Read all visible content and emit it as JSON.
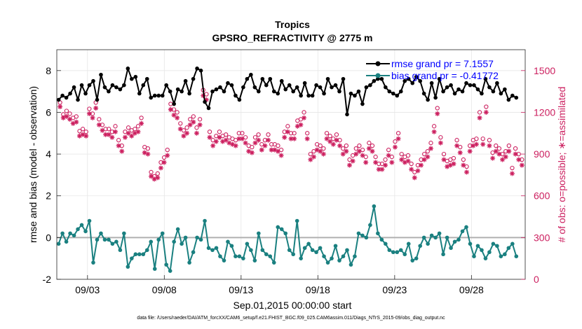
{
  "chart_data": {
    "type": "line",
    "title": "Tropics",
    "subtitle": "GPSRO_REFRACTIVITY @ 2775 m",
    "xlabel": "Sep.01,2015 00:00:00 start",
    "ylabel_left": "rmse and bias (model - observation)",
    "ylabel_right": "# of obs: o=possible; ∗=assimilated",
    "xlim": [
      1,
      31.5
    ],
    "ylim_left": [
      -2,
      9
    ],
    "ylim_right": [
      0,
      1650
    ],
    "xticks": [
      3,
      8,
      13,
      18,
      23,
      28
    ],
    "xtick_labels": [
      "09/03",
      "09/08",
      "09/13",
      "09/18",
      "09/23",
      "09/28"
    ],
    "yticks_left": [
      -2,
      0,
      2,
      4,
      6,
      8
    ],
    "yticks_right": [
      0,
      300,
      600,
      900,
      1200,
      1500
    ],
    "legend": [
      "rmse grand pr = 7.1557",
      "bias grand pr = -0.41772"
    ],
    "legend_position": "top-right",
    "colors": {
      "rmse": "#000000",
      "bias": "#1a8080",
      "obs": "#cc1f5f",
      "zero_line": "#b0b0b0",
      "legend_text": "#0000ff"
    },
    "series": [
      {
        "name": "rmse",
        "axis": "left",
        "values": [
          6.6,
          6.8,
          6.7,
          6.9,
          7.2,
          6.6,
          7.3,
          6.9,
          7.3,
          7.5,
          6.6,
          7.8,
          7.2,
          7.0,
          7.3,
          7.2,
          7.1,
          7.3,
          8.1,
          7.6,
          7.7,
          6.9,
          7.3,
          7.6,
          6.7,
          6.8,
          6.8,
          6.8,
          7.3,
          7.0,
          6.4,
          7.1,
          7.0,
          7.5,
          6.9,
          7.6,
          8.1,
          8.0,
          6.5,
          6.2,
          7.0,
          7.1,
          7.2,
          7.0,
          7.4,
          7.3,
          6.8,
          6.6,
          7.2,
          7.6,
          7.8,
          7.2,
          7.0,
          7.6,
          7.3,
          7.6,
          7.0,
          6.9,
          7.5,
          7.1,
          7.3,
          7.0,
          7.2,
          6.8,
          7.4,
          6.8,
          6.8,
          7.3,
          7.2,
          6.9,
          7.6,
          7.2,
          7.3,
          7.0,
          7.6,
          5.9,
          6.9,
          6.8,
          7.0,
          6.4,
          7.2,
          7.3,
          7.5,
          7.6,
          7.6,
          7.2,
          7.0,
          6.9,
          6.8,
          7.0,
          7.5,
          7.6,
          7.4,
          7.7,
          7.5,
          6.9,
          6.6,
          7.4,
          6.7,
          7.6,
          7.0,
          7.2,
          7.3,
          6.9,
          7.1,
          7.0,
          7.4,
          7.3,
          7.3,
          7.1,
          6.9,
          7.6,
          7.2,
          7.0,
          7.4,
          6.9,
          7.1,
          6.6,
          6.8,
          6.7
        ]
      },
      {
        "name": "bias",
        "axis": "left",
        "values": [
          -0.3,
          0.2,
          -0.2,
          0.2,
          0.1,
          0.4,
          0.6,
          0.3,
          0.8,
          -1.2,
          -0.1,
          0.2,
          -0.1,
          -0.1,
          -0.3,
          -0.2,
          -0.6,
          0.2,
          -1.4,
          -1.0,
          -0.8,
          -0.8,
          -0.8,
          -0.6,
          -0.2,
          -1.5,
          -0.1,
          0.2,
          -1.3,
          -1.6,
          -0.2,
          0.4,
          -0.3,
          0.0,
          -1.2,
          -0.7,
          0.0,
          -0.1,
          0.8,
          -0.5,
          -0.6,
          -0.5,
          -0.9,
          -1.1,
          -0.2,
          -0.4,
          -0.9,
          -0.9,
          -1.0,
          -0.3,
          -0.6,
          -1.1,
          0.2,
          -0.6,
          -0.8,
          -0.9,
          -1.2,
          0.5,
          0.4,
          0.2,
          -0.6,
          -0.8,
          0.8,
          -1.0,
          -0.5,
          -0.3,
          -0.6,
          -0.7,
          -0.5,
          -0.9,
          -1.2,
          -1.0,
          -0.4,
          -1.1,
          -0.9,
          -0.6,
          -1.3,
          -0.9,
          0.2,
          0.1,
          0.0,
          0.6,
          1.5,
          0.2,
          -0.1,
          -0.3,
          -0.6,
          -0.7,
          -0.7,
          -0.6,
          -0.8,
          -0.3,
          -1.1,
          -1.0,
          -0.4,
          0.0,
          -0.3,
          0.1,
          0.0,
          0.2,
          -0.8,
          0.0,
          -0.5,
          -0.2,
          -0.1,
          0.3,
          0.5,
          -0.3,
          -0.9,
          -0.4,
          -0.6,
          -1.0,
          -0.7,
          -0.3,
          -0.4,
          -0.9,
          -0.8,
          -0.5,
          -0.3,
          -0.9
        ]
      },
      {
        "name": "obs possible",
        "axis": "right",
        "marker": "o",
        "values": [
          1270,
          1185,
          1210,
          1190,
          1160,
          1170,
          1065,
          1080,
          1060,
          1225,
          1190,
          1270,
          1150,
          1110,
          1080,
          1080,
          1060,
          1100,
          1000,
          960,
          1060,
          1090,
          1070,
          1080,
          1100,
          1160,
          950,
          940,
          770,
          740,
          760,
          840,
          875,
          930,
          1260,
          1220,
          1200,
          1120,
          1070,
          1090,
          1150,
          1170,
          1090,
          1150,
          1360,
          1330,
          1060,
          1000,
          1030,
          1060,
          1030,
          1040,
          1020,
          1010,
          1000,
          1050,
          1050,
          1020,
          960,
          950,
          1020,
          1040,
          970,
          1000,
          1040,
          970,
          970,
          960,
          930,
          1060,
          1100,
          1050,
          1050,
          1140,
          1150,
          1200,
          1050,
          900,
          920,
          970,
          960,
          940,
          1050,
          1030,
          1010,
          1040,
          1000,
          940,
          960,
          860,
          890,
          940,
          960,
          930,
          880,
          980,
          960,
          880,
          830,
          830,
          860,
          930,
          880,
          990,
          1050,
          900,
          880,
          890,
          830,
          770,
          820,
          860,
          900,
          920,
          980,
          1100,
          1230,
          1020,
          900,
          850,
          860,
          870,
          1000,
          950,
          860,
          810,
          960,
          1000,
          1010,
          1200,
          1010,
          1240,
          1000,
          910,
          960,
          940,
          900,
          920,
          960,
          800,
          940,
          900,
          860
        ]
      },
      {
        "name": "obs assimilated",
        "axis": "right",
        "marker": "*",
        "values": [
          1240,
          1160,
          1170,
          1150,
          1120,
          1130,
          1030,
          1040,
          1030,
          1190,
          1160,
          1230,
          1110,
          1070,
          1040,
          1040,
          1020,
          1060,
          960,
          920,
          1020,
          1050,
          1030,
          1050,
          1060,
          1120,
          910,
          900,
          740,
          720,
          730,
          800,
          840,
          890,
          1220,
          1180,
          1160,
          1080,
          1030,
          1050,
          1110,
          1130,
          1050,
          1110,
          1320,
          1290,
          1020,
          960,
          990,
          1020,
          990,
          1000,
          980,
          970,
          960,
          1010,
          1010,
          980,
          920,
          910,
          980,
          1000,
          930,
          960,
          1000,
          930,
          930,
          920,
          890,
          1020,
          1060,
          1010,
          1010,
          1100,
          1110,
          1160,
          1010,
          860,
          880,
          930,
          920,
          900,
          1010,
          990,
          970,
          1000,
          960,
          900,
          920,
          820,
          850,
          900,
          920,
          890,
          840,
          940,
          920,
          840,
          790,
          790,
          820,
          890,
          840,
          950,
          1010,
          860,
          840,
          850,
          790,
          730,
          780,
          820,
          860,
          880,
          940,
          1060,
          1190,
          980,
          860,
          810,
          820,
          830,
          960,
          910,
          820,
          770,
          920,
          960,
          970,
          1160,
          970,
          1200,
          960,
          870,
          920,
          900,
          860,
          880,
          920,
          760,
          900,
          860,
          820
        ]
      }
    ]
  },
  "footer": "data file: /Users/raeder/DAI/ATM_forcXX/CAM6_setup/f.e21.FHIST_BGC.f09_025.CAM6assim.011/Diags_NTrS_2015-09/obs_diag_output.nc"
}
